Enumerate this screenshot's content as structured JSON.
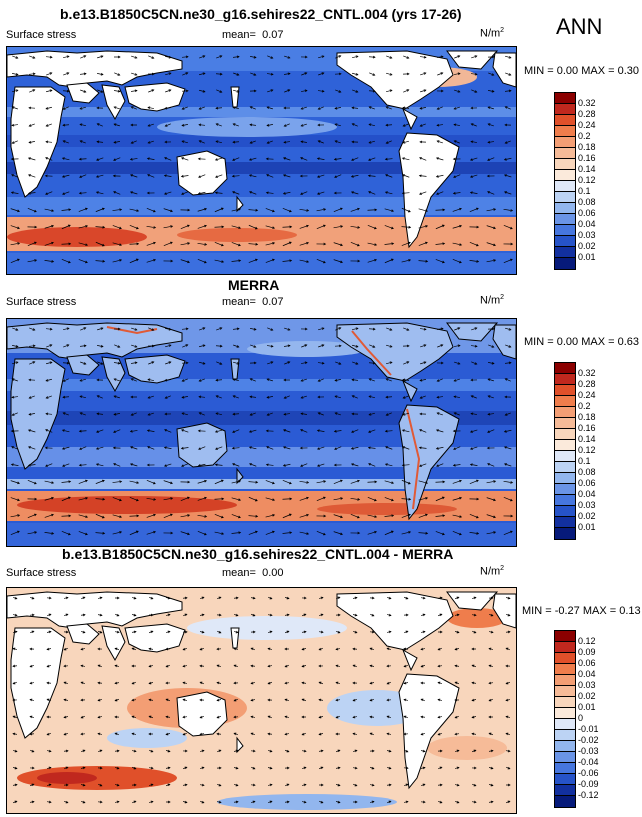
{
  "season": "ANN",
  "panels": [
    {
      "title": "b.e13.B1850C5CN.ne30_g16.sehires22_CNTL.004 (yrs 17-26)",
      "variable": "Surface stress",
      "mean_label": "mean=",
      "mean_value": "0.07",
      "units": "N/m",
      "units_exp": "2",
      "min_label": "MIN =",
      "min_value": "0.00",
      "max_label": "MAX =",
      "max_value": "0.30",
      "levels": [
        "0.32",
        "0.28",
        "0.24",
        "0.2",
        "0.18",
        "0.16",
        "0.14",
        "0.12",
        "0.1",
        "0.08",
        "0.06",
        "0.04",
        "0.03",
        "0.02",
        "0.01"
      ],
      "colors": [
        "#8b0000",
        "#c0281e",
        "#e0502a",
        "#ef7d4c",
        "#f39e74",
        "#f6bb98",
        "#f8d6bc",
        "#fbeadb",
        "#dfe8f8",
        "#bcd3f4",
        "#92b6ee",
        "#6a94e6",
        "#4676de",
        "#2653c8",
        "#12309f",
        "#061a7a"
      ]
    },
    {
      "title": "MERRA",
      "variable": "Surface stress",
      "mean_label": "mean=",
      "mean_value": "0.07",
      "units": "N/m",
      "units_exp": "2",
      "min_label": "MIN =",
      "min_value": "0.00",
      "max_label": "MAX =",
      "max_value": "0.63",
      "levels": [
        "0.32",
        "0.28",
        "0.24",
        "0.2",
        "0.18",
        "0.16",
        "0.14",
        "0.12",
        "0.1",
        "0.08",
        "0.06",
        "0.04",
        "0.03",
        "0.02",
        "0.01"
      ],
      "colors": [
        "#8b0000",
        "#c0281e",
        "#e0502a",
        "#ef7d4c",
        "#f39e74",
        "#f6bb98",
        "#f8d6bc",
        "#fbeadb",
        "#dfe8f8",
        "#bcd3f4",
        "#92b6ee",
        "#6a94e6",
        "#4676de",
        "#2653c8",
        "#12309f",
        "#061a7a"
      ]
    },
    {
      "title": "b.e13.B1850C5CN.ne30_g16.sehires22_CNTL.004 - MERRA",
      "variable": "Surface stress",
      "mean_label": "mean=",
      "mean_value": "0.00",
      "units": "N/m",
      "units_exp": "2",
      "min_label": "MIN =",
      "min_value": "-0.27",
      "max_label": "MAX =",
      "max_value": "0.13",
      "levels": [
        "0.12",
        "0.09",
        "0.06",
        "0.04",
        "0.03",
        "0.02",
        "0.01",
        "0",
        "-0.01",
        "-0.02",
        "-0.03",
        "-0.04",
        "-0.06",
        "-0.09",
        "-0.12"
      ],
      "colors": [
        "#8b0000",
        "#c0281e",
        "#e0502a",
        "#ef7d4c",
        "#f39e74",
        "#f6bb98",
        "#f8d6bc",
        "#fbeadb",
        "#dfe8f8",
        "#bcd3f4",
        "#92b6ee",
        "#6a94e6",
        "#4676de",
        "#2653c8",
        "#12309f",
        "#061a7a"
      ]
    }
  ]
}
